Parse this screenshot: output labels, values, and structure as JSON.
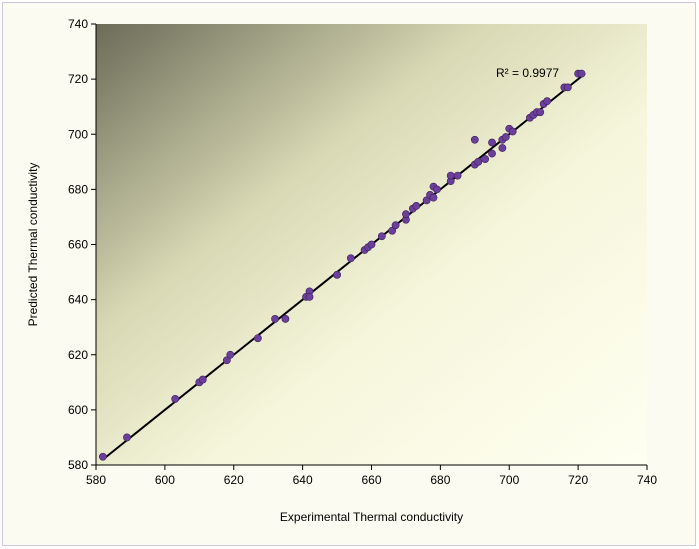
{
  "chart_data": {
    "type": "scatter",
    "title": "",
    "xlabel": "Experimental Thermal conductivity",
    "ylabel": "Predicted Thermal conductivity",
    "xlim": [
      580,
      740
    ],
    "ylim": [
      580,
      740
    ],
    "xticks": [
      "580",
      "600",
      "620",
      "640",
      "660",
      "680",
      "700",
      "720",
      "740"
    ],
    "yticks": [
      "580",
      "600",
      "620",
      "640",
      "660",
      "680",
      "700",
      "720",
      "740"
    ],
    "grid": false,
    "legend": "none",
    "annotation": "R² = 0.9977",
    "trendline": {
      "x": [
        582,
        722
      ],
      "y": [
        582,
        722
      ]
    },
    "colors": {
      "marker": "#6b3f9a",
      "marker_edge": "#3d1f5e",
      "trendline": "#000000"
    },
    "series": [
      {
        "points": [
          [
            582,
            583
          ],
          [
            589,
            590
          ],
          [
            603,
            604
          ],
          [
            610,
            610
          ],
          [
            611,
            611
          ],
          [
            618,
            618
          ],
          [
            619,
            620
          ],
          [
            627,
            626
          ],
          [
            632,
            633
          ],
          [
            635,
            633
          ],
          [
            641,
            641
          ],
          [
            642,
            643
          ],
          [
            642,
            641
          ],
          [
            650,
            649
          ],
          [
            654,
            655
          ],
          [
            658,
            658
          ],
          [
            659,
            659
          ],
          [
            660,
            660
          ],
          [
            663,
            663
          ],
          [
            666,
            665
          ],
          [
            667,
            667
          ],
          [
            670,
            669
          ],
          [
            670,
            671
          ],
          [
            672,
            673
          ],
          [
            673,
            674
          ],
          [
            676,
            676
          ],
          [
            677,
            678
          ],
          [
            678,
            677
          ],
          [
            678,
            681
          ],
          [
            679,
            680
          ],
          [
            683,
            683
          ],
          [
            683,
            685
          ],
          [
            685,
            685
          ],
          [
            690,
            698
          ],
          [
            690,
            689
          ],
          [
            691,
            690
          ],
          [
            693,
            691
          ],
          [
            695,
            693
          ],
          [
            695,
            697
          ],
          [
            698,
            695
          ],
          [
            698,
            698
          ],
          [
            699,
            699
          ],
          [
            700,
            702
          ],
          [
            701,
            701
          ],
          [
            706,
            706
          ],
          [
            707,
            707
          ],
          [
            708,
            708
          ],
          [
            709,
            708
          ],
          [
            710,
            711
          ],
          [
            711,
            712
          ],
          [
            716,
            717
          ],
          [
            717,
            717
          ],
          [
            720,
            722
          ],
          [
            721,
            722
          ]
        ]
      }
    ]
  }
}
